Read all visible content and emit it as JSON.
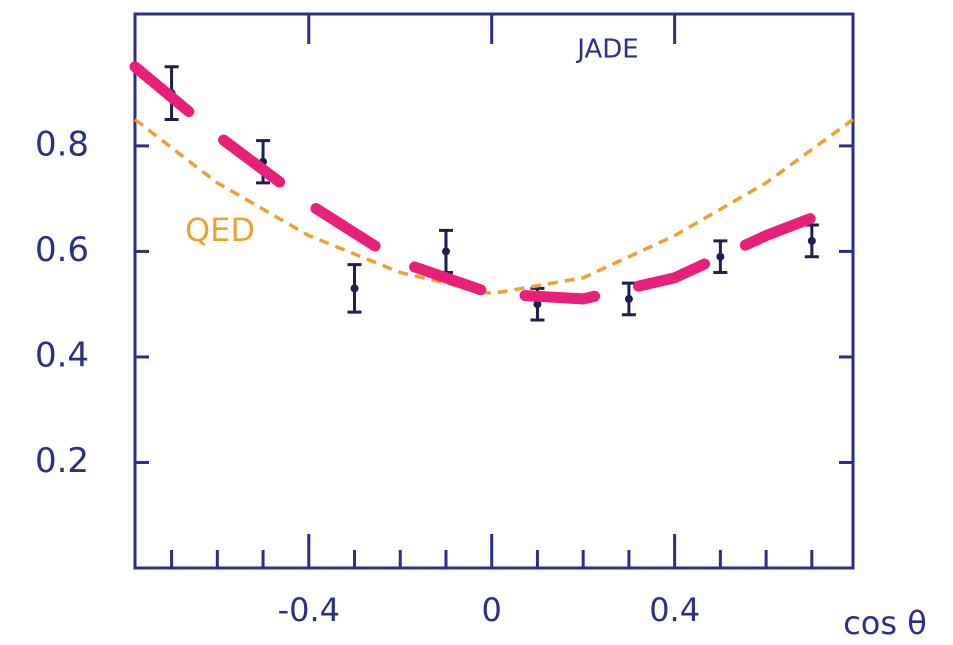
{
  "chart_data": {
    "type": "scatter",
    "annotations": [
      "JADE"
    ],
    "xlabel": "cos θ",
    "xlim": [
      -0.78,
      0.79
    ],
    "ylim": [
      0,
      1.05
    ],
    "xticks": [
      -0.4,
      0,
      0.4
    ],
    "xminorticks": [
      -0.7,
      -0.6,
      -0.5,
      -0.3,
      -0.2,
      -0.1,
      0.1,
      0.2,
      0.3,
      0.5,
      0.6,
      0.7
    ],
    "yticks": [
      0.2,
      0.4,
      0.6,
      0.8
    ],
    "axis_color": "#2b2f86",
    "series": [
      {
        "kind": "errorbar",
        "color": "#1e1e50",
        "x": [
          -0.7,
          -0.5,
          -0.3,
          -0.1,
          0.1,
          0.3,
          0.5,
          0.7
        ],
        "values": [
          0.9,
          0.77,
          0.53,
          0.6,
          0.5,
          0.51,
          0.59,
          0.62
        ],
        "errors": [
          0.05,
          0.04,
          0.045,
          0.04,
          0.03,
          0.03,
          0.03,
          0.03
        ]
      },
      {
        "kind": "line",
        "name": "QED",
        "color": "#f0a030",
        "x": [
          -0.78,
          -0.6,
          -0.4,
          -0.2,
          0,
          0.2,
          0.4,
          0.6,
          0.79
        ],
        "values": [
          0.85,
          0.73,
          0.63,
          0.56,
          0.52,
          0.55,
          0.63,
          0.73,
          0.85
        ]
      },
      {
        "kind": "line",
        "color": "#e8207a",
        "x": [
          -0.78,
          -0.6,
          -0.4,
          -0.2,
          0,
          0.2,
          0.4,
          0.6,
          0.78
        ],
        "values": [
          0.95,
          0.82,
          0.69,
          0.58,
          0.52,
          0.51,
          0.55,
          0.63,
          0.69
        ]
      }
    ]
  }
}
